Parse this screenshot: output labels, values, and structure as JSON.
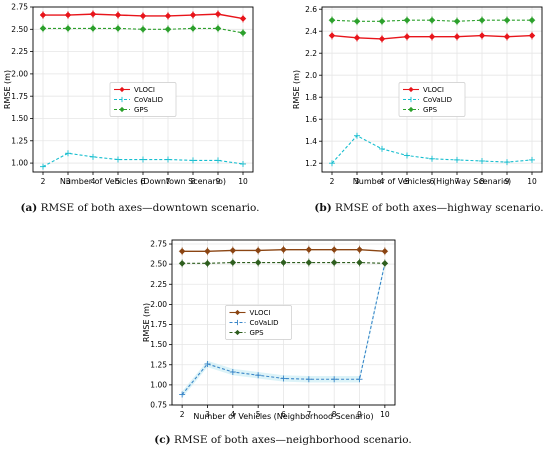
{
  "chart_data": [
    {
      "type": "line",
      "x": [
        2,
        3,
        4,
        5,
        6,
        7,
        8,
        9,
        10
      ],
      "xlabel": "Number of Vehicles (Downtown Scenario)",
      "ylabel": "RMSE (m)",
      "ylim": [
        0.9,
        2.75
      ],
      "yticks": [
        1.0,
        1.25,
        1.5,
        1.75,
        2.0,
        2.25,
        2.5,
        2.75
      ],
      "ytick_labels": [
        "1.00",
        "1.25",
        "1.50",
        "1.75",
        "2.00",
        "2.25",
        "2.50",
        "2.75"
      ],
      "grid": true,
      "legend": "center",
      "caption_label": "(a)",
      "caption_text": " RMSE of both axes—downtown scenario.",
      "series": [
        {
          "name": "VLOCI",
          "color": "#e8151b",
          "style": "solid",
          "marker": "diamond",
          "values": [
            2.66,
            2.66,
            2.67,
            2.66,
            2.65,
            2.65,
            2.66,
            2.67,
            2.62
          ]
        },
        {
          "name": "CoVaLID",
          "color": "#17becf",
          "style": "dashed",
          "marker": "plus",
          "values": [
            0.96,
            1.11,
            1.07,
            1.04,
            1.04,
            1.04,
            1.03,
            1.03,
            0.99
          ]
        },
        {
          "name": "GPS",
          "color": "#2ca02c",
          "style": "dashed",
          "marker": "diamond",
          "values": [
            2.51,
            2.51,
            2.51,
            2.51,
            2.5,
            2.5,
            2.51,
            2.51,
            2.46
          ]
        }
      ]
    },
    {
      "type": "line",
      "x": [
        2,
        3,
        4,
        5,
        6,
        7,
        8,
        9,
        10
      ],
      "xlabel": "Number of Vehicles (Highway Scenario)",
      "ylabel": "RMSE (m)",
      "ylim": [
        1.12,
        2.62
      ],
      "yticks": [
        1.2,
        1.4,
        1.6,
        1.8,
        2.0,
        2.2,
        2.4,
        2.6
      ],
      "ytick_labels": [
        "1.2",
        "1.4",
        "1.6",
        "1.8",
        "2.0",
        "2.2",
        "2.4",
        "2.6"
      ],
      "grid": true,
      "legend": "center",
      "caption_label": "(b)",
      "caption_text": " RMSE of both axes—highway scenario.",
      "series": [
        {
          "name": "VLOCI",
          "color": "#e8151b",
          "style": "solid",
          "marker": "diamond",
          "values": [
            2.36,
            2.34,
            2.33,
            2.35,
            2.35,
            2.35,
            2.36,
            2.35,
            2.36
          ]
        },
        {
          "name": "CoVaLID",
          "color": "#17becf",
          "style": "dashed",
          "marker": "plus",
          "values": [
            1.2,
            1.45,
            1.33,
            1.27,
            1.24,
            1.23,
            1.22,
            1.21,
            1.23
          ]
        },
        {
          "name": "GPS",
          "color": "#2ca02c",
          "style": "dashed",
          "marker": "diamond",
          "values": [
            2.5,
            2.49,
            2.49,
            2.5,
            2.5,
            2.49,
            2.5,
            2.5,
            2.5
          ]
        }
      ]
    },
    {
      "type": "line",
      "x": [
        2,
        3,
        4,
        5,
        6,
        7,
        8,
        9,
        10
      ],
      "xlabel": "Number of Vehicles (Neighborhood Scenario)",
      "ylabel": "RMSE (m)",
      "ylim": [
        0.75,
        2.8
      ],
      "yticks": [
        0.75,
        1.0,
        1.25,
        1.5,
        1.75,
        2.0,
        2.25,
        2.5,
        2.75
      ],
      "ytick_labels": [
        "0.75",
        "1.00",
        "1.25",
        "1.50",
        "1.75",
        "2.00",
        "2.25",
        "2.50",
        "2.75"
      ],
      "grid": true,
      "legend": "center",
      "caption_label": "(c)",
      "caption_text": " RMSE of both axes—neighborhood scenario.",
      "series": [
        {
          "name": "VLOCI",
          "color": "#8b4513",
          "style": "solid",
          "marker": "diamond",
          "values": [
            2.66,
            2.66,
            2.67,
            2.67,
            2.68,
            2.68,
            2.68,
            2.68,
            2.66
          ]
        },
        {
          "name": "CoVaLID",
          "color": "#3a86c8",
          "style": "dashed",
          "marker": "plus",
          "values": [
            0.88,
            1.26,
            1.16,
            1.12,
            1.08,
            1.07,
            1.07,
            1.07,
            2.51
          ]
        },
        {
          "name": "GPS",
          "color": "#2e5e1e",
          "style": "dashed",
          "marker": "diamond",
          "values": [
            2.51,
            2.51,
            2.52,
            2.52,
            2.52,
            2.52,
            2.52,
            2.52,
            2.51
          ]
        }
      ]
    }
  ]
}
